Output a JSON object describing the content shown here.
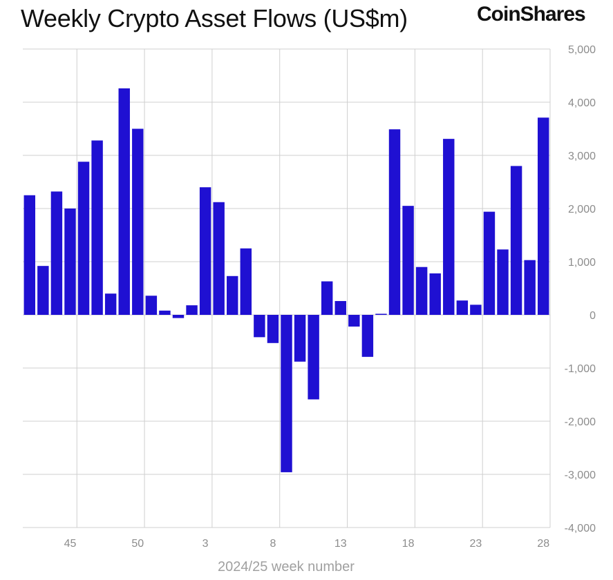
{
  "header": {
    "title": "Weekly Crypto Asset Flows (US$m)",
    "brand": "CoinShares"
  },
  "chart_data": {
    "type": "bar",
    "title": "Weekly Crypto Asset Flows (US$m)",
    "xlabel": "2024/25 week number",
    "ylabel": "",
    "ylim": [
      -4000,
      5000
    ],
    "yticks": [
      5000,
      4000,
      3000,
      2000,
      1000,
      0,
      -1000,
      -2000,
      -3000,
      -4000
    ],
    "ytick_labels": [
      "5,000",
      "4,000",
      "3,000",
      "2,000",
      "1,000",
      "0",
      "-1,000",
      "-2,000",
      "-3,000",
      "-4,000"
    ],
    "xtick_labels": [
      "45",
      "50",
      "3",
      "8",
      "13",
      "18",
      "23",
      "28"
    ],
    "categories": [
      "42",
      "43",
      "44",
      "45",
      "46",
      "47",
      "48",
      "49",
      "50",
      "51",
      "52",
      "1",
      "2",
      "3",
      "4",
      "5",
      "6",
      "7",
      "8",
      "9",
      "10",
      "11",
      "12",
      "13",
      "14",
      "15",
      "16",
      "17",
      "18",
      "19",
      "20",
      "21",
      "22",
      "23",
      "24",
      "25",
      "26",
      "27",
      "28"
    ],
    "values": [
      2250,
      920,
      2320,
      2000,
      2880,
      3280,
      400,
      4260,
      3500,
      360,
      80,
      -60,
      180,
      2400,
      2120,
      730,
      1250,
      -420,
      -530,
      -2960,
      -880,
      -1590,
      630,
      260,
      -220,
      -790,
      20,
      3490,
      2050,
      900,
      780,
      3310,
      270,
      190,
      1940,
      1230,
      2800,
      1030,
      3710
    ],
    "grid": true,
    "bar_color": "#1f10d2",
    "axis_position": "right"
  }
}
